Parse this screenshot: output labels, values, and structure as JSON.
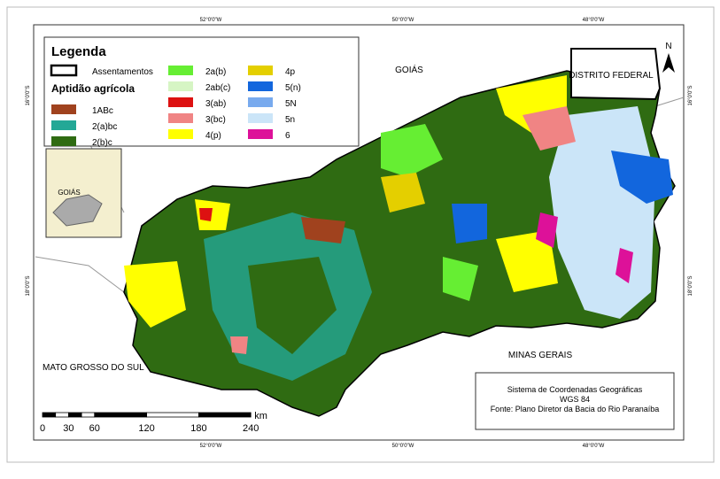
{
  "legend": {
    "title": "Legenda",
    "settlements": "Assentamentos",
    "subtitle": "Aptidão agrícola",
    "items": [
      {
        "label": "1ABc",
        "color": "#a0421e"
      },
      {
        "label": "2(a)bc",
        "color": "#23a896"
      },
      {
        "label": "2(b)c",
        "color": "#2f6b12"
      },
      {
        "label": "2a(b)",
        "color": "#66ee33"
      },
      {
        "label": "2ab(c)",
        "color": "#d6f5c4"
      },
      {
        "label": "3(ab)",
        "color": "#dd1111"
      },
      {
        "label": "3(bc)",
        "color": "#f08484"
      },
      {
        "label": "4(p)",
        "color": "#ffff00"
      },
      {
        "label": "4p",
        "color": "#e4cf00"
      },
      {
        "label": "5(n)",
        "color": "#1266dd"
      },
      {
        "label": "5N",
        "color": "#78aaee"
      },
      {
        "label": "5n",
        "color": "#cbe5f8"
      },
      {
        "label": "6",
        "color": "#dd1199"
      }
    ]
  },
  "places": {
    "goias": "GOIÁS",
    "df": "DISTRITO FEDERAL",
    "ms": "MATO GROSSO DO SUL",
    "mg": "MINAS GERAIS",
    "inset": "GOIÁS"
  },
  "north": "N",
  "graticule": {
    "lon": [
      "52°0'0\"W",
      "50°0'0\"W",
      "48°0'0\"W"
    ],
    "lat": [
      "16°0'0\"S",
      "18°0'0\"S"
    ]
  },
  "scale": {
    "ticks": [
      "0",
      "30",
      "60",
      "120",
      "180",
      "240"
    ],
    "unit": "km"
  },
  "info": [
    "Sistema de Coordenadas Geográficas",
    "WGS 84",
    "Fonte: Plano Diretor da Bacia do Rio Paranaíba"
  ]
}
